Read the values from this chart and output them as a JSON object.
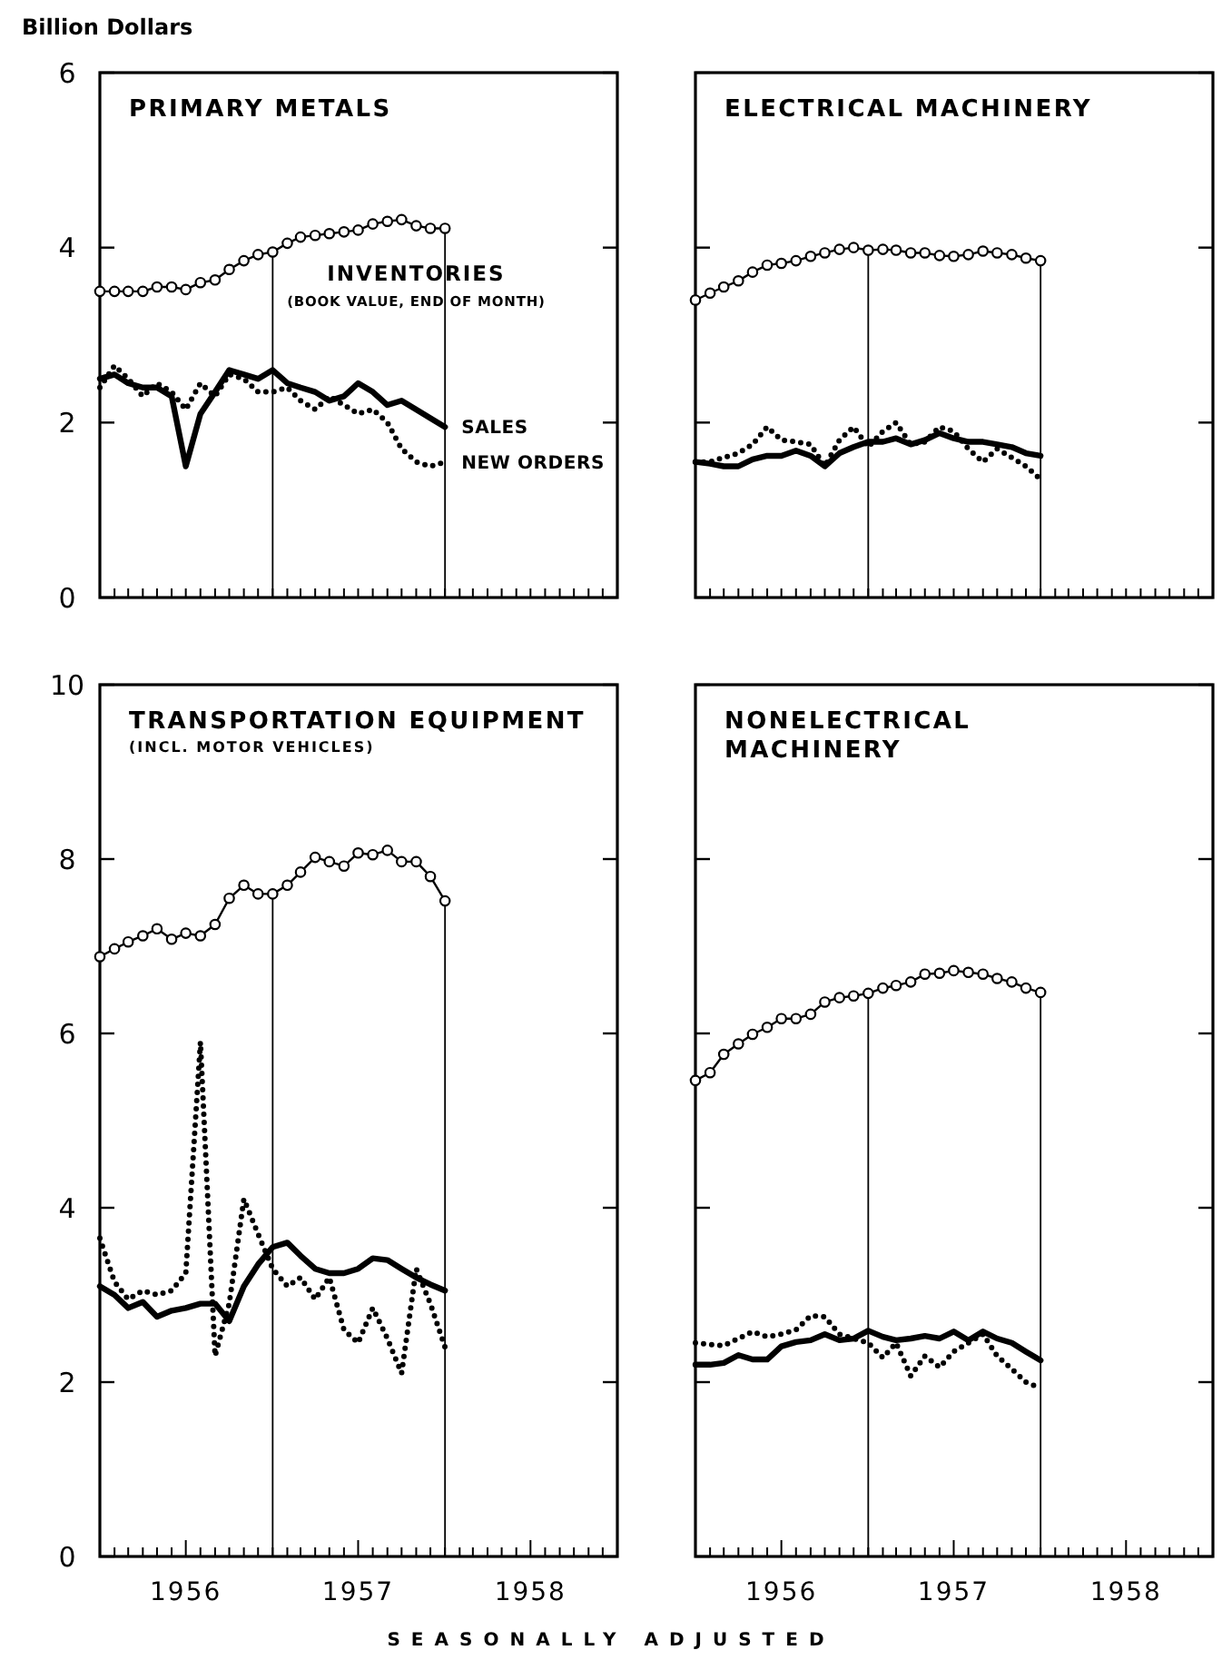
{
  "chart_data": [
    {
      "type": "line",
      "title": "PRIMARY METALS",
      "ylabel": "Billion Dollars",
      "tick_labels": "y",
      "x": [
        "1956-01",
        "1956-02",
        "1956-03",
        "1956-04",
        "1956-05",
        "1956-06",
        "1956-07",
        "1956-08",
        "1956-09",
        "1956-10",
        "1956-11",
        "1956-12",
        "1957-01",
        "1957-02",
        "1957-03",
        "1957-04",
        "1957-05",
        "1957-06",
        "1957-07",
        "1957-08",
        "1957-09",
        "1957-10",
        "1957-11",
        "1957-12",
        "1958-01"
      ],
      "xlim": [
        "1956-01",
        "1959-01"
      ],
      "xticks": [
        {
          "value": "1956-01",
          "label": null
        },
        {
          "value": "1956-02",
          "label": null
        },
        {
          "value": "1956-03",
          "label": null
        },
        {
          "value": "1956-04",
          "label": null
        },
        {
          "value": "1956-05",
          "label": null
        },
        {
          "value": "1956-06",
          "label": null
        },
        {
          "value": "1956-07",
          "label": null
        },
        {
          "value": "1956-08",
          "label": null
        },
        {
          "value": "1956-09",
          "label": null
        },
        {
          "value": "1956-10",
          "label": null
        },
        {
          "value": "1956-11",
          "label": null
        },
        {
          "value": "1956-12",
          "label": null
        },
        {
          "value": "1957-01",
          "label": null
        },
        {
          "value": "1957-02",
          "label": null
        },
        {
          "value": "1957-03",
          "label": null
        },
        {
          "value": "1957-04",
          "label": null
        },
        {
          "value": "1957-05",
          "label": null
        },
        {
          "value": "1957-06",
          "label": null
        },
        {
          "value": "1957-07",
          "label": null
        },
        {
          "value": "1957-08",
          "label": null
        },
        {
          "value": "1957-09",
          "label": null
        },
        {
          "value": "1957-10",
          "label": null
        },
        {
          "value": "1957-11",
          "label": null
        },
        {
          "value": "1957-12",
          "label": null
        },
        {
          "value": "1958-01",
          "label": null
        },
        {
          "value": "1958-02",
          "label": null
        },
        {
          "value": "1958-03",
          "label": null
        },
        {
          "value": "1958-04",
          "label": null
        },
        {
          "value": "1958-05",
          "label": null
        },
        {
          "value": "1958-06",
          "label": null
        },
        {
          "value": "1958-07",
          "label": null
        },
        {
          "value": "1958-08",
          "label": null
        },
        {
          "value": "1958-09",
          "label": null
        },
        {
          "value": "1958-10",
          "label": null
        },
        {
          "value": "1958-11",
          "label": null
        },
        {
          "value": "1958-12",
          "label": null
        },
        {
          "value": "1959-01",
          "label": null
        }
      ],
      "ylim": [
        0,
        6
      ],
      "yticks": [
        0,
        2,
        4,
        6
      ],
      "ref_lines": [
        {
          "axis": "x",
          "value": "1957-01",
          "color": "#000000"
        },
        {
          "axis": "x",
          "value": "1958-01",
          "color": "#000000"
        }
      ],
      "annotations": [
        "(BOOK VALUE, END OF MONTH)"
      ],
      "series": [
        {
          "name": "INVENTORIES",
          "color": "#000000",
          "marker": "circle",
          "line_style": "solid",
          "values": [
            3.5,
            3.5,
            3.5,
            3.5,
            3.55,
            3.55,
            3.52,
            3.6,
            3.63,
            3.75,
            3.85,
            3.92,
            3.95,
            4.05,
            4.12,
            4.14,
            4.16,
            4.18,
            4.2,
            4.27,
            4.3,
            4.32,
            4.25,
            4.22,
            4.22
          ]
        },
        {
          "name": "SALES",
          "color": "#000000",
          "marker": "none",
          "line_style": "solid",
          "values": [
            2.5,
            2.55,
            2.45,
            2.4,
            2.4,
            2.3,
            1.5,
            2.1,
            2.35,
            2.6,
            2.55,
            2.5,
            2.6,
            2.45,
            2.4,
            2.35,
            2.25,
            2.3,
            2.45,
            2.35,
            2.2,
            2.25,
            2.15,
            2.05,
            1.95
          ]
        },
        {
          "name": "NEW ORDERS",
          "color": "#000000",
          "marker": "none",
          "line_style": "dotted",
          "values": [
            2.4,
            2.65,
            2.5,
            2.3,
            2.45,
            2.35,
            2.15,
            2.45,
            2.3,
            2.55,
            2.5,
            2.35,
            2.35,
            2.4,
            2.25,
            2.15,
            2.3,
            2.2,
            2.1,
            2.15,
            2.0,
            1.7,
            1.55,
            1.5,
            1.55
          ]
        }
      ]
    },
    {
      "type": "line",
      "title": "ELECTRICAL MACHINERY",
      "tick_labels": false,
      "x": [
        "1956-01",
        "1956-02",
        "1956-03",
        "1956-04",
        "1956-05",
        "1956-06",
        "1956-07",
        "1956-08",
        "1956-09",
        "1956-10",
        "1956-11",
        "1956-12",
        "1957-01",
        "1957-02",
        "1957-03",
        "1957-04",
        "1957-05",
        "1957-06",
        "1957-07",
        "1957-08",
        "1957-09",
        "1957-10",
        "1957-11",
        "1957-12",
        "1958-01"
      ],
      "xlim": [
        "1956-01",
        "1959-01"
      ],
      "xticks": [
        {
          "value": "1956-01",
          "label": null
        },
        {
          "value": "1956-02",
          "label": null
        },
        {
          "value": "1956-03",
          "label": null
        },
        {
          "value": "1956-04",
          "label": null
        },
        {
          "value": "1956-05",
          "label": null
        },
        {
          "value": "1956-06",
          "label": null
        },
        {
          "value": "1956-07",
          "label": null
        },
        {
          "value": "1956-08",
          "label": null
        },
        {
          "value": "1956-09",
          "label": null
        },
        {
          "value": "1956-10",
          "label": null
        },
        {
          "value": "1956-11",
          "label": null
        },
        {
          "value": "1956-12",
          "label": null
        },
        {
          "value": "1957-01",
          "label": null
        },
        {
          "value": "1957-02",
          "label": null
        },
        {
          "value": "1957-03",
          "label": null
        },
        {
          "value": "1957-04",
          "label": null
        },
        {
          "value": "1957-05",
          "label": null
        },
        {
          "value": "1957-06",
          "label": null
        },
        {
          "value": "1957-07",
          "label": null
        },
        {
          "value": "1957-08",
          "label": null
        },
        {
          "value": "1957-09",
          "label": null
        },
        {
          "value": "1957-10",
          "label": null
        },
        {
          "value": "1957-11",
          "label": null
        },
        {
          "value": "1957-12",
          "label": null
        },
        {
          "value": "1958-01",
          "label": null
        },
        {
          "value": "1958-02",
          "label": null
        },
        {
          "value": "1958-03",
          "label": null
        },
        {
          "value": "1958-04",
          "label": null
        },
        {
          "value": "1958-05",
          "label": null
        },
        {
          "value": "1958-06",
          "label": null
        },
        {
          "value": "1958-07",
          "label": null
        },
        {
          "value": "1958-08",
          "label": null
        },
        {
          "value": "1958-09",
          "label": null
        },
        {
          "value": "1958-10",
          "label": null
        },
        {
          "value": "1958-11",
          "label": null
        },
        {
          "value": "1958-12",
          "label": null
        },
        {
          "value": "1959-01",
          "label": null
        }
      ],
      "ylim": [
        0,
        6
      ],
      "yticks": [
        0,
        2,
        4,
        6
      ],
      "ref_lines": [
        {
          "axis": "x",
          "value": "1957-01",
          "color": "#000000"
        },
        {
          "axis": "x",
          "value": "1958-01",
          "color": "#000000"
        }
      ],
      "series": [
        {
          "color": "#000000",
          "marker": "circle",
          "line_style": "solid",
          "values": [
            3.4,
            3.48,
            3.55,
            3.62,
            3.72,
            3.8,
            3.82,
            3.85,
            3.9,
            3.94,
            3.98,
            4.0,
            3.97,
            3.98,
            3.97,
            3.94,
            3.94,
            3.91,
            3.9,
            3.92,
            3.96,
            3.94,
            3.92,
            3.88,
            3.85
          ]
        },
        {
          "color": "#000000",
          "marker": "none",
          "line_style": "solid",
          "values": [
            1.55,
            1.53,
            1.5,
            1.5,
            1.58,
            1.62,
            1.62,
            1.68,
            1.62,
            1.5,
            1.65,
            1.72,
            1.78,
            1.78,
            1.82,
            1.75,
            1.8,
            1.88,
            1.82,
            1.78,
            1.78,
            1.75,
            1.72,
            1.65,
            1.62
          ]
        },
        {
          "color": "#000000",
          "marker": "none",
          "line_style": "dotted",
          "values": [
            1.55,
            1.55,
            1.6,
            1.65,
            1.75,
            1.95,
            1.8,
            1.78,
            1.75,
            1.5,
            1.8,
            1.95,
            1.72,
            1.9,
            2.0,
            1.75,
            1.78,
            1.95,
            1.9,
            1.7,
            1.55,
            1.7,
            1.6,
            1.5,
            1.35
          ]
        }
      ]
    },
    {
      "type": "line",
      "title": "TRANSPORTATION EQUIPMENT",
      "subtitle": "(INCL. MOTOR VEHICLES)",
      "xlabel": "SEASONALLY ADJUSTED",
      "x": [
        "1956-01",
        "1956-02",
        "1956-03",
        "1956-04",
        "1956-05",
        "1956-06",
        "1956-07",
        "1956-08",
        "1956-09",
        "1956-10",
        "1956-11",
        "1956-12",
        "1957-01",
        "1957-02",
        "1957-03",
        "1957-04",
        "1957-05",
        "1957-06",
        "1957-07",
        "1957-08",
        "1957-09",
        "1957-10",
        "1957-11",
        "1957-12",
        "1958-01"
      ],
      "xlim": [
        "1956-01",
        "1959-01"
      ],
      "xticks": [
        {
          "value": "1956-01",
          "label": null
        },
        {
          "value": "1956-02",
          "label": null
        },
        {
          "value": "1956-03",
          "label": null
        },
        {
          "value": "1956-04",
          "label": null
        },
        {
          "value": "1956-05",
          "label": null
        },
        {
          "value": "1956-06",
          "label": null
        },
        {
          "value": "1956-07",
          "label": "1956"
        },
        {
          "value": "1956-08",
          "label": null
        },
        {
          "value": "1956-09",
          "label": null
        },
        {
          "value": "1956-10",
          "label": null
        },
        {
          "value": "1956-11",
          "label": null
        },
        {
          "value": "1956-12",
          "label": null
        },
        {
          "value": "1957-01",
          "label": null
        },
        {
          "value": "1957-02",
          "label": null
        },
        {
          "value": "1957-03",
          "label": null
        },
        {
          "value": "1957-04",
          "label": null
        },
        {
          "value": "1957-05",
          "label": null
        },
        {
          "value": "1957-06",
          "label": null
        },
        {
          "value": "1957-07",
          "label": "1957"
        },
        {
          "value": "1957-08",
          "label": null
        },
        {
          "value": "1957-09",
          "label": null
        },
        {
          "value": "1957-10",
          "label": null
        },
        {
          "value": "1957-11",
          "label": null
        },
        {
          "value": "1957-12",
          "label": null
        },
        {
          "value": "1958-01",
          "label": null
        },
        {
          "value": "1958-02",
          "label": null
        },
        {
          "value": "1958-03",
          "label": null
        },
        {
          "value": "1958-04",
          "label": null
        },
        {
          "value": "1958-05",
          "label": null
        },
        {
          "value": "1958-06",
          "label": null
        },
        {
          "value": "1958-07",
          "label": "1958"
        },
        {
          "value": "1958-08",
          "label": null
        },
        {
          "value": "1958-09",
          "label": null
        },
        {
          "value": "1958-10",
          "label": null
        },
        {
          "value": "1958-11",
          "label": null
        },
        {
          "value": "1958-12",
          "label": null
        },
        {
          "value": "1959-01",
          "label": null
        }
      ],
      "ylim": [
        0,
        10
      ],
      "yticks": [
        0,
        2,
        4,
        6,
        8,
        10
      ],
      "ref_lines": [
        {
          "axis": "x",
          "value": "1957-01",
          "color": "#000000"
        },
        {
          "axis": "x",
          "value": "1958-01",
          "color": "#000000"
        }
      ],
      "series": [
        {
          "color": "#000000",
          "marker": "circle",
          "line_style": "solid",
          "values": [
            6.88,
            6.97,
            7.05,
            7.12,
            7.2,
            7.08,
            7.15,
            7.12,
            7.25,
            7.55,
            7.7,
            7.6,
            7.6,
            7.7,
            7.85,
            8.02,
            7.97,
            7.92,
            8.07,
            8.05,
            8.1,
            7.97,
            7.97,
            7.8,
            7.52
          ]
        },
        {
          "color": "#000000",
          "marker": "none",
          "line_style": "solid",
          "values": [
            3.1,
            3.0,
            2.85,
            2.92,
            2.75,
            2.82,
            2.85,
            2.9,
            2.9,
            2.7,
            3.1,
            3.35,
            3.55,
            3.6,
            3.45,
            3.3,
            3.25,
            3.25,
            3.3,
            3.42,
            3.4,
            3.3,
            3.2,
            3.12,
            3.05
          ]
        },
        {
          "color": "#000000",
          "marker": "none",
          "line_style": "dotted",
          "values": [
            3.65,
            3.15,
            2.95,
            3.05,
            3.0,
            3.05,
            3.25,
            5.9,
            2.3,
            2.9,
            4.1,
            3.7,
            3.3,
            3.1,
            3.2,
            2.95,
            3.2,
            2.6,
            2.45,
            2.85,
            2.5,
            2.1,
            3.3,
            2.9,
            2.4
          ]
        }
      ]
    },
    {
      "type": "line",
      "title": "NONELECTRICAL\nMACHINERY",
      "tick_labels": "x",
      "x": [
        "1956-01",
        "1956-02",
        "1956-03",
        "1956-04",
        "1956-05",
        "1956-06",
        "1956-07",
        "1956-08",
        "1956-09",
        "1956-10",
        "1956-11",
        "1956-12",
        "1957-01",
        "1957-02",
        "1957-03",
        "1957-04",
        "1957-05",
        "1957-06",
        "1957-07",
        "1957-08",
        "1957-09",
        "1957-10",
        "1957-11",
        "1957-12",
        "1958-01"
      ],
      "xlim": [
        "1956-01",
        "1959-01"
      ],
      "xticks": [
        {
          "value": "1956-01",
          "label": null
        },
        {
          "value": "1956-02",
          "label": null
        },
        {
          "value": "1956-03",
          "label": null
        },
        {
          "value": "1956-04",
          "label": null
        },
        {
          "value": "1956-05",
          "label": null
        },
        {
          "value": "1956-06",
          "label": null
        },
        {
          "value": "1956-07",
          "label": "1956"
        },
        {
          "value": "1956-08",
          "label": null
        },
        {
          "value": "1956-09",
          "label": null
        },
        {
          "value": "1956-10",
          "label": null
        },
        {
          "value": "1956-11",
          "label": null
        },
        {
          "value": "1956-12",
          "label": null
        },
        {
          "value": "1957-01",
          "label": null
        },
        {
          "value": "1957-02",
          "label": null
        },
        {
          "value": "1957-03",
          "label": null
        },
        {
          "value": "1957-04",
          "label": null
        },
        {
          "value": "1957-05",
          "label": null
        },
        {
          "value": "1957-06",
          "label": null
        },
        {
          "value": "1957-07",
          "label": "1957"
        },
        {
          "value": "1957-08",
          "label": null
        },
        {
          "value": "1957-09",
          "label": null
        },
        {
          "value": "1957-10",
          "label": null
        },
        {
          "value": "1957-11",
          "label": null
        },
        {
          "value": "1957-12",
          "label": null
        },
        {
          "value": "1958-01",
          "label": null
        },
        {
          "value": "1958-02",
          "label": null
        },
        {
          "value": "1958-03",
          "label": null
        },
        {
          "value": "1958-04",
          "label": null
        },
        {
          "value": "1958-05",
          "label": null
        },
        {
          "value": "1958-06",
          "label": null
        },
        {
          "value": "1958-07",
          "label": "1958"
        },
        {
          "value": "1958-08",
          "label": null
        },
        {
          "value": "1958-09",
          "label": null
        },
        {
          "value": "1958-10",
          "label": null
        },
        {
          "value": "1958-11",
          "label": null
        },
        {
          "value": "1958-12",
          "label": null
        },
        {
          "value": "1959-01",
          "label": null
        }
      ],
      "ylim": [
        0,
        10
      ],
      "yticks": [
        0,
        2,
        4,
        6,
        8,
        10
      ],
      "ref_lines": [
        {
          "axis": "x",
          "value": "1957-01",
          "color": "#000000"
        },
        {
          "axis": "x",
          "value": "1958-01",
          "color": "#000000"
        }
      ],
      "series": [
        {
          "color": "#000000",
          "marker": "circle",
          "line_style": "solid",
          "values": [
            5.46,
            5.55,
            5.76,
            5.88,
            5.99,
            6.07,
            6.17,
            6.17,
            6.22,
            6.36,
            6.41,
            6.43,
            6.46,
            6.52,
            6.55,
            6.59,
            6.68,
            6.69,
            6.72,
            6.7,
            6.68,
            6.63,
            6.59,
            6.52,
            6.47
          ]
        },
        {
          "color": "#000000",
          "marker": "none",
          "line_style": "solid",
          "values": [
            2.2,
            2.2,
            2.22,
            2.31,
            2.26,
            2.26,
            2.41,
            2.46,
            2.48,
            2.55,
            2.48,
            2.5,
            2.59,
            2.52,
            2.48,
            2.5,
            2.53,
            2.5,
            2.58,
            2.48,
            2.58,
            2.5,
            2.45,
            2.35,
            2.25
          ]
        },
        {
          "color": "#000000",
          "marker": "none",
          "line_style": "dotted",
          "values": [
            2.45,
            2.43,
            2.42,
            2.5,
            2.58,
            2.52,
            2.55,
            2.6,
            2.76,
            2.75,
            2.55,
            2.5,
            2.45,
            2.28,
            2.45,
            2.07,
            2.3,
            2.17,
            2.35,
            2.45,
            2.55,
            2.3,
            2.15,
            2.0,
            1.93
          ]
        }
      ]
    }
  ]
}
